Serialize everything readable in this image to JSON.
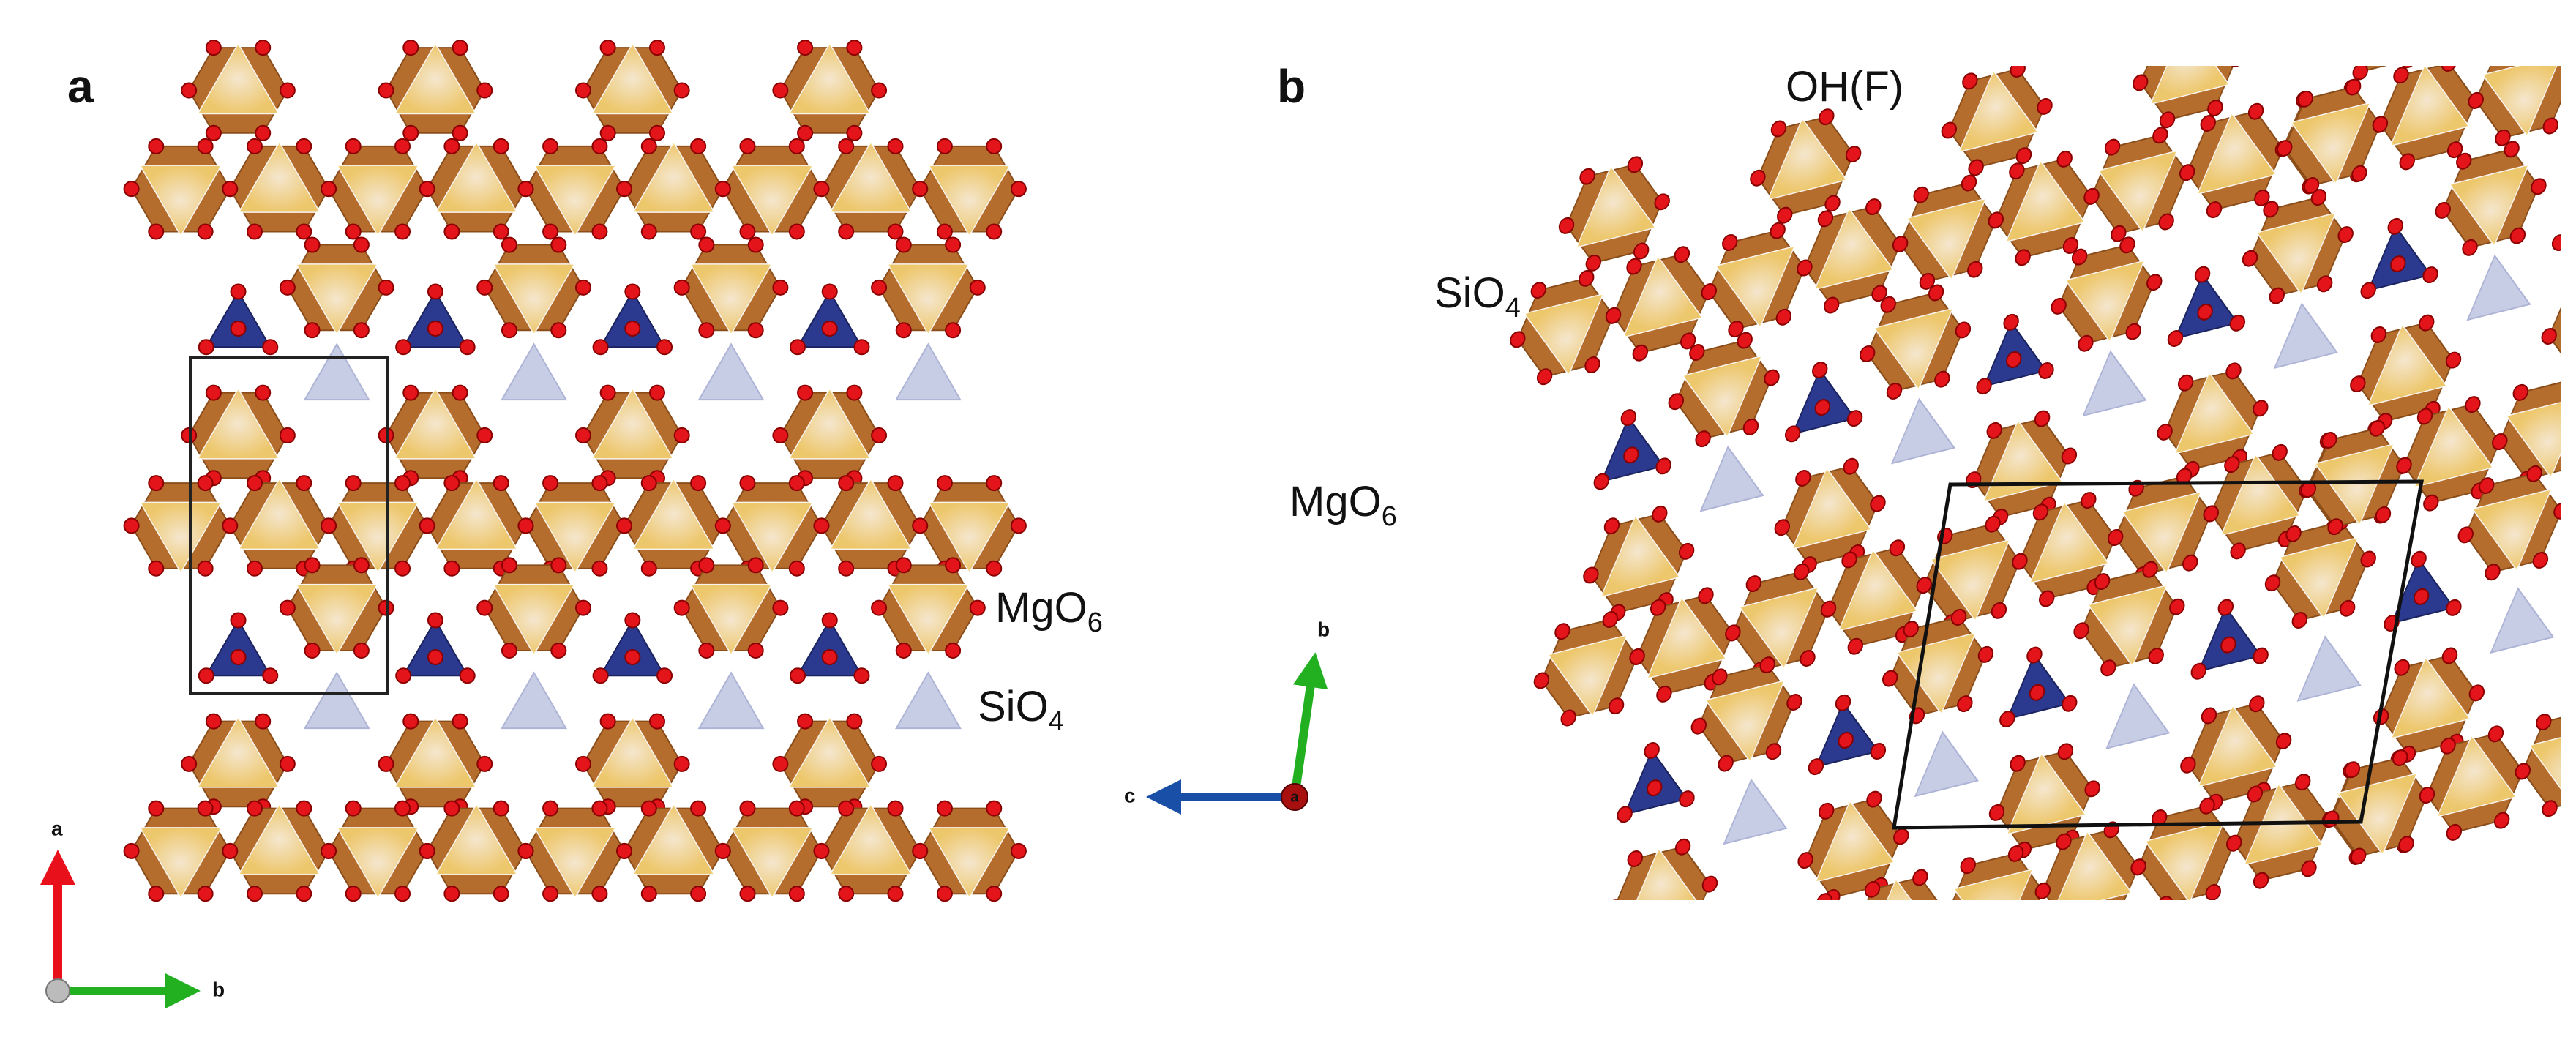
{
  "panels": [
    {
      "letter": "a",
      "labels": [
        {
          "base": "MgO",
          "sub": "6"
        },
        {
          "base": "SiO",
          "sub": "4"
        }
      ],
      "axes": {
        "up": "a",
        "right": "b"
      }
    },
    {
      "letter": "b",
      "labels": [
        {
          "base": "OH(F)"
        },
        {
          "base": "SiO",
          "sub": "4"
        },
        {
          "base": "MgO",
          "sub": "6"
        }
      ],
      "axes": {
        "left": "c",
        "up": "b",
        "center": "a"
      }
    }
  ]
}
